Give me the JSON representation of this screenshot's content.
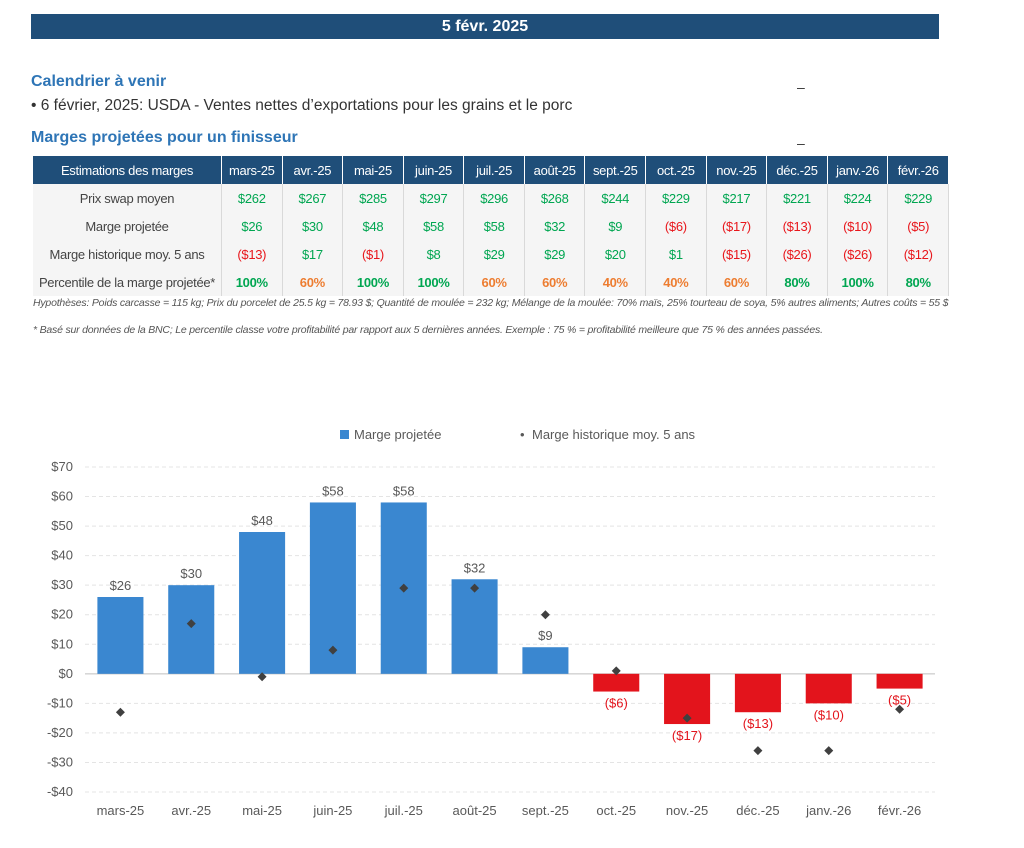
{
  "header": {
    "date": "5 févr. 2025"
  },
  "calendar": {
    "title": "Calendrier à venir",
    "item": "• 6 février, 2025: USDA - Ventes nettes d’exportations pour les grains et le porc",
    "dash": "–"
  },
  "margins_section": {
    "title": "Marges projetées pour un finisseur",
    "dash": "–"
  },
  "table": {
    "corner": "Estimations des marges",
    "months": [
      "mars-25",
      "avr.-25",
      "mai-25",
      "juin-25",
      "juil.-25",
      "août-25",
      "sept.-25",
      "oct.-25",
      "nov.-25",
      "déc.-25",
      "janv.-26",
      "févr.-26"
    ],
    "rows": [
      {
        "label": "Prix swap moyen",
        "cells": [
          "$262",
          "$267",
          "$285",
          "$297",
          "$296",
          "$268",
          "$244",
          "$229",
          "$217",
          "$221",
          "$224",
          "$229"
        ],
        "colors": [
          "pos",
          "pos",
          "pos",
          "pos",
          "pos",
          "pos",
          "pos",
          "pos",
          "pos",
          "pos",
          "pos",
          "pos"
        ]
      },
      {
        "label": "Marge projetée",
        "cells": [
          "$26",
          "$30",
          "$48",
          "$58",
          "$58",
          "$32",
          "$9",
          "($6)",
          "($17)",
          "($13)",
          "($10)",
          "($5)"
        ],
        "colors": [
          "pos",
          "pos",
          "pos",
          "pos",
          "pos",
          "pos",
          "pos",
          "neg",
          "neg",
          "neg",
          "neg",
          "neg"
        ]
      },
      {
        "label": "Marge historique moy. 5 ans",
        "cells": [
          "($13)",
          "$17",
          "($1)",
          "$8",
          "$29",
          "$29",
          "$20",
          "$1",
          "($15)",
          "($26)",
          "($26)",
          "($12)"
        ],
        "colors": [
          "neg",
          "pos",
          "neg",
          "pos",
          "pos",
          "pos",
          "pos",
          "pos",
          "neg",
          "neg",
          "neg",
          "neg"
        ]
      },
      {
        "label": "Percentile de la marge projetée*",
        "cells": [
          "100%",
          "60%",
          "100%",
          "100%",
          "60%",
          "60%",
          "40%",
          "40%",
          "60%",
          "80%",
          "100%",
          "80%"
        ],
        "colors": [
          "pct-green",
          "pct-orange",
          "pct-green",
          "pct-green",
          "pct-orange",
          "pct-orange",
          "pct-orange",
          "pct-orange",
          "pct-orange",
          "pct-green",
          "pct-green",
          "pct-green"
        ]
      }
    ]
  },
  "notes": {
    "hypotheses": "Hypothèses: Poids carcasse = 115 kg; Prix du porcelet de 25.5 kg = 78.93 $; Quantité de moulée = 232 kg; Mélange de la moulée: 70% maïs, 25% tourteau de soya, 5% autres aliments; Autres coûts = 55 $",
    "footnote": "* Basé sur données de la BNC; Le percentile classe votre profitabilité par rapport aux 5 dernières années. Exemple : 75 % = profitabilité meilleure que 75 % des années passées."
  },
  "chart_data": {
    "type": "bar",
    "categories": [
      "mars-25",
      "avr.-25",
      "mai-25",
      "juin-25",
      "juil.-25",
      "août-25",
      "sept.-25",
      "oct.-25",
      "nov.-25",
      "déc.-25",
      "janv.-26",
      "févr.-26"
    ],
    "series": [
      {
        "name": "Marge projetée",
        "kind": "bar",
        "values": [
          26,
          30,
          48,
          58,
          58,
          32,
          9,
          -6,
          -17,
          -13,
          -10,
          -5
        ],
        "labels": [
          "$26",
          "$30",
          "$48",
          "$58",
          "$58",
          "$32",
          "$9",
          "($6)",
          "($17)",
          "($13)",
          "($10)",
          "($5)"
        ]
      },
      {
        "name": "Marge historique moy. 5 ans",
        "kind": "marker",
        "values": [
          -13,
          17,
          -1,
          8,
          29,
          29,
          20,
          1,
          -15,
          -26,
          -26,
          -12
        ]
      }
    ],
    "ylim": [
      -40,
      70
    ],
    "yticks": [
      70,
      60,
      50,
      40,
      30,
      20,
      10,
      0,
      -10,
      -20,
      -30,
      -40
    ],
    "ytick_labels": [
      "$70",
      "$60",
      "$50",
      "$40",
      "$30",
      "$20",
      "$10",
      "$0",
      "-$10",
      "-$20",
      "-$30",
      "-$40"
    ],
    "legend": {
      "position": "top",
      "items": [
        "Marge projetée",
        "Marge historique moy. 5 ans"
      ]
    },
    "grid": true,
    "colors": {
      "positive_bar": "#3a87d0",
      "negative_bar": "#e3141c",
      "marker": "#404040",
      "positive_label": "#595959",
      "negative_label": "#e3141c"
    }
  }
}
